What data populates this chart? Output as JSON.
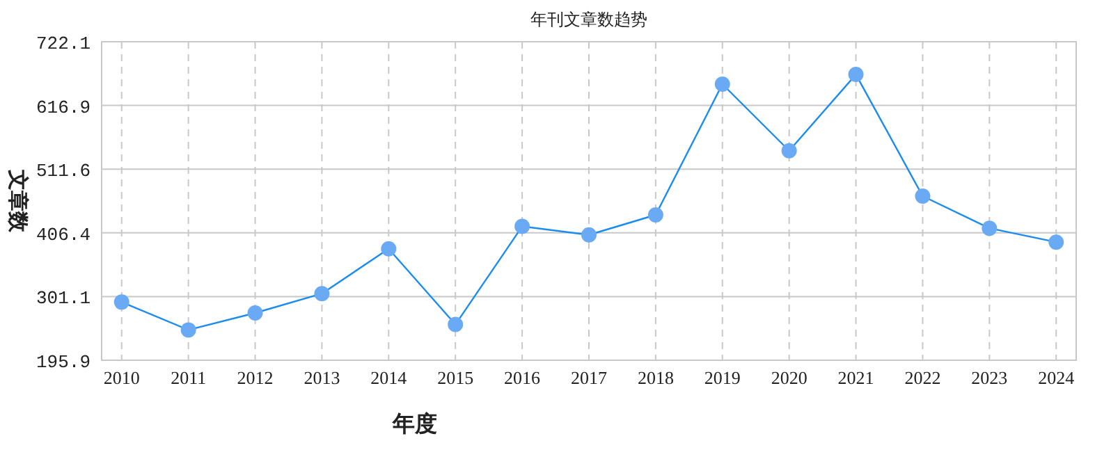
{
  "chart_data": {
    "type": "line",
    "title": "年刊文章数趋势",
    "xlabel": "年度",
    "ylabel": "文章数",
    "categories": [
      "2010",
      "2011",
      "2012",
      "2013",
      "2014",
      "2015",
      "2016",
      "2017",
      "2018",
      "2019",
      "2020",
      "2021",
      "2022",
      "2023",
      "2024"
    ],
    "series": [
      {
        "color": "#1a8cf0",
        "values": [
          292,
          246,
          274,
          306,
          380,
          255,
          417,
          403,
          436,
          652,
          542,
          668,
          467,
          414,
          391
        ]
      }
    ],
    "ylim": [
      195.9,
      722.1
    ],
    "yticks": [
      195.9,
      301.1,
      406.4,
      511.6,
      616.9,
      722.1
    ],
    "grid": true,
    "marker": "circle",
    "line_style": "solid"
  }
}
